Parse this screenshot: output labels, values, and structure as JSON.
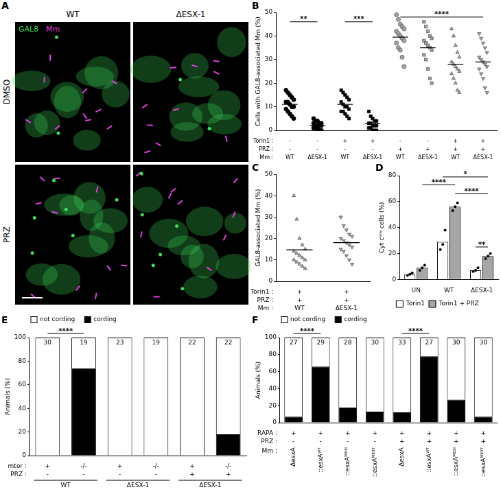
{
  "image_panel": {
    "panel_label": "A",
    "columns": [
      "WT",
      "ΔESX-1"
    ],
    "rows": [
      "DMSO",
      "PRZ"
    ],
    "channels": [
      {
        "name": "GAL8",
        "color": "#3ddc5a"
      },
      {
        "name": "Mm",
        "color": "#e23fe0"
      }
    ]
  },
  "chart_data": [
    {
      "panel_label": "B",
      "type": "scatter",
      "ylabel": "Cells with GAL8-associated Mm (%)",
      "ylim": [
        0,
        50
      ],
      "yticks": [
        0,
        10,
        20,
        30,
        40,
        50
      ],
      "grid": false,
      "groups": [
        {
          "marker": "circle",
          "color": "#000000",
          "values": [
            17,
            16,
            15,
            14,
            13,
            12,
            12,
            11,
            10,
            10,
            9,
            8,
            7,
            6,
            5
          ],
          "mean": 11
        },
        {
          "marker": "circle",
          "color": "#000000",
          "values": [
            5,
            4,
            4,
            3,
            3,
            3,
            2,
            2,
            2,
            2,
            1,
            1,
            1,
            0,
            0
          ],
          "mean": 2
        },
        {
          "marker": "square",
          "color": "#000000",
          "values": [
            17,
            16,
            15,
            14,
            13,
            12,
            11,
            10,
            10,
            9,
            8,
            8,
            7,
            6,
            5
          ],
          "mean": 11
        },
        {
          "marker": "square",
          "color": "#000000",
          "values": [
            8,
            6,
            5,
            4,
            4,
            3,
            3,
            2,
            2,
            2,
            1,
            1,
            0,
            0,
            0
          ],
          "mean": 3
        },
        {
          "marker": "circle",
          "color": "#a6a6a6",
          "values": [
            49,
            47,
            45,
            44,
            43,
            42,
            41,
            40,
            39,
            38,
            37,
            35,
            34,
            31,
            27
          ],
          "mean": 39.5
        },
        {
          "marker": "square",
          "color": "#a6a6a6",
          "values": [
            46,
            44,
            42,
            40,
            39,
            38,
            37,
            36,
            35,
            34,
            32,
            30,
            26,
            22,
            20
          ],
          "mean": 35
        },
        {
          "marker": "triangle-up",
          "color": "#a6a6a6",
          "values": [
            43,
            40,
            36,
            33,
            31,
            29,
            28,
            27,
            26,
            25,
            24,
            22,
            20,
            17,
            16
          ],
          "mean": 28
        },
        {
          "marker": "triangle-down",
          "color": "#a6a6a6",
          "values": [
            41,
            39,
            37,
            35,
            33,
            31,
            30,
            29,
            28,
            27,
            26,
            24,
            22,
            18,
            16
          ],
          "mean": 29
        }
      ],
      "conditions": {
        "rows": [
          {
            "label": "Torin1 :",
            "values": [
              "-",
              "-",
              "+",
              "+",
              "-",
              "-",
              "+",
              "+"
            ]
          },
          {
            "label": "PRZ :",
            "values": [
              "-",
              "-",
              "-",
              "-",
              "+",
              "+",
              "+",
              "+"
            ]
          },
          {
            "label": "Mm :",
            "values": [
              "WT",
              "ΔESX-1",
              "WT",
              "ΔESX-1",
              "WT",
              "ΔESX-1",
              "WT",
              "ΔESX-1"
            ]
          }
        ]
      },
      "annotations": [
        {
          "text": "**",
          "from": 0,
          "to": 1,
          "y": 46
        },
        {
          "text": "***",
          "from": 2,
          "to": 3,
          "y": 46
        },
        {
          "text": "****",
          "from": 4,
          "to": 7,
          "y": 48
        }
      ]
    },
    {
      "panel_label": "C",
      "type": "scatter",
      "ylabel": "GAL8-associated Mm (%)",
      "ylim": [
        0,
        50
      ],
      "yticks": [
        0,
        10,
        20,
        30,
        40,
        50
      ],
      "grid": false,
      "groups": [
        {
          "marker": "triangle-up",
          "color": "#a6a6a6",
          "values": [
            40,
            29,
            20,
            17,
            15,
            14,
            13,
            12,
            11,
            10,
            10,
            9,
            8,
            7,
            6
          ],
          "mean": 14.7
        },
        {
          "marker": "triangle-down",
          "color": "#a6a6a6",
          "values": [
            30,
            26,
            24,
            22,
            21,
            20,
            19,
            18,
            17,
            16,
            15,
            14,
            12,
            10,
            8
          ],
          "mean": 18.1
        }
      ],
      "conditions": {
        "rows": [
          {
            "label": "Torin1 :",
            "values": [
              "+",
              "+"
            ]
          },
          {
            "label": "PRZ :",
            "values": [
              "+",
              "+"
            ]
          },
          {
            "label": "Mm :",
            "values": [
              "WT",
              "ΔESX-1"
            ]
          }
        ]
      }
    },
    {
      "panel_label": "D",
      "type": "bar",
      "ylabel": "Cyt cˡᵒʷ cells (%)",
      "categories": [
        "UN",
        "WT",
        "ΔESX-1"
      ],
      "ylim": [
        0,
        80
      ],
      "yticks": [
        0,
        20,
        40,
        60,
        80
      ],
      "grid": false,
      "legend": "bottom",
      "series": [
        {
          "name": "Torin1",
          "color": "#ffffff",
          "values": [
            4,
            29,
            7
          ],
          "points": [
            [
              3,
              4,
              5
            ],
            [
              23,
              27,
              38
            ],
            [
              6,
              7,
              9
            ]
          ]
        },
        {
          "name": "Torin1 + PRZ",
          "color": "#a6a6a6",
          "values": [
            9,
            56,
            18
          ],
          "points": [
            [
              7,
              9,
              11
            ],
            [
              53,
              56,
              59
            ],
            [
              16,
              18,
              20
            ]
          ]
        }
      ],
      "annotations": [
        {
          "text": "*",
          "from": {
            "category": 1,
            "series": 0
          },
          "to": {
            "category": 2,
            "series": 1
          },
          "y": 79
        },
        {
          "text": "****",
          "from": {
            "category": 0,
            "series": 1
          },
          "to": {
            "category": 1,
            "series": 1
          },
          "y": 73
        },
        {
          "text": "****",
          "from": {
            "category": 1,
            "series": 1
          },
          "to": {
            "category": 2,
            "series": 1
          },
          "y": 66
        },
        {
          "text": "**",
          "from": {
            "category": 2,
            "series": 0
          },
          "to": {
            "category": 2,
            "series": 1
          },
          "y": 25
        }
      ]
    },
    {
      "panel_label": "E",
      "type": "bar",
      "stacked": true,
      "ylabel": "Animals (%)",
      "ylim": [
        0,
        100
      ],
      "yticks": [
        0,
        20,
        40,
        60,
        80,
        100
      ],
      "grid": false,
      "legend": "top-left",
      "series": [
        {
          "name": "cording",
          "color": "#000000",
          "values": [
            0,
            74,
            0,
            0,
            0,
            18
          ]
        },
        {
          "name": "not cording",
          "color": "#ffffff",
          "values": [
            100,
            26,
            100,
            100,
            100,
            82
          ]
        }
      ],
      "n": [
        30,
        19,
        23,
        19,
        22,
        22
      ],
      "conditions": {
        "rows": [
          {
            "label": "mtor :",
            "values": [
              "+",
              "-/-",
              "+",
              "-/-",
              "+",
              "-/-"
            ]
          },
          {
            "label": "PRZ :",
            "values": [
              "-",
              "-",
              "-",
              "-",
              "+",
              "+"
            ]
          }
        ]
      },
      "groups": [
        {
          "label": "WT",
          "from": 0,
          "to": 1
        },
        {
          "label": "ΔESX-1",
          "from": 2,
          "to": 3
        },
        {
          "label": "ΔESX-1",
          "from": 4,
          "to": 5
        }
      ],
      "annotations": [
        {
          "text": "****",
          "from": 0,
          "to": 1
        }
      ]
    },
    {
      "panel_label": "F",
      "type": "bar",
      "stacked": true,
      "ylabel": "Animals (%)",
      "ylim": [
        0,
        100
      ],
      "yticks": [
        0,
        20,
        40,
        60,
        80,
        100
      ],
      "grid": false,
      "legend": "top-left",
      "series": [
        {
          "name": "cording",
          "color": "#000000",
          "values": [
            7,
            66,
            18,
            13,
            12,
            78,
            27,
            7
          ]
        },
        {
          "name": "not cording",
          "color": "#ffffff",
          "values": [
            93,
            34,
            82,
            87,
            88,
            22,
            73,
            93
          ]
        }
      ],
      "n": [
        27,
        29,
        28,
        30,
        33,
        27,
        30,
        30
      ],
      "conditions": {
        "rows": [
          {
            "label": "RAPA :",
            "values": [
              "+",
              "+",
              "+",
              "+",
              "+",
              "+",
              "+",
              "+"
            ]
          },
          {
            "label": "PRZ :",
            "values": [
              "-",
              "-",
              "-",
              "-",
              "+",
              "+",
              "+",
              "+"
            ]
          },
          {
            "label": "Mm :",
            "values": [
              "ΔesxA",
              "::esxAᵂᵀ",
              "::esxAᴹ⁸³ᴵ",
              "::esxAᴹ⁹³ᵀ",
              "ΔesxA",
              "::esxAᵂᵀ",
              "::esxAᴹ⁸³ᴵ",
              "::esxAᴹ⁹³ᵀ"
            ]
          }
        ]
      },
      "annotations": [
        {
          "text": "****",
          "from": 0,
          "to": 1
        },
        {
          "text": "****",
          "from": 4,
          "to": 5
        }
      ]
    }
  ]
}
